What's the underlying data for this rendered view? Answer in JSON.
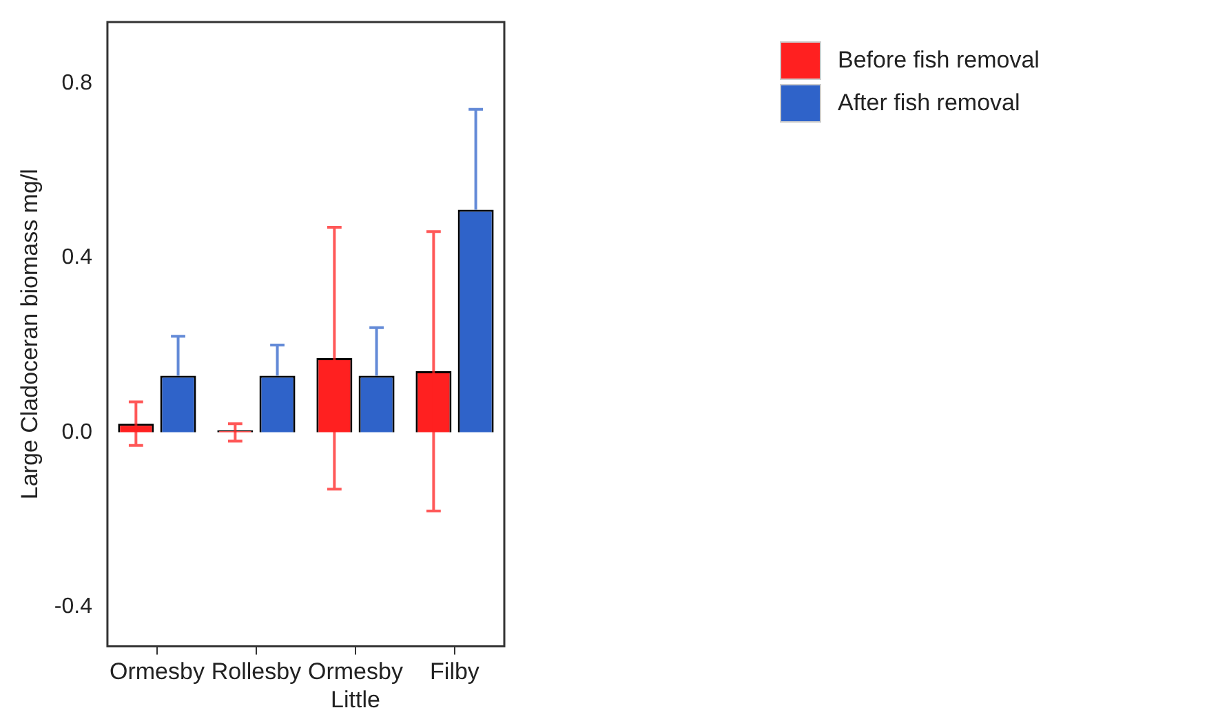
{
  "chart_data": {
    "type": "bar",
    "ylabel": "Large Cladoceran biomass mg/l",
    "categories": [
      "Ormesby",
      "Rollesby",
      "Ormesby Little",
      "Filby"
    ],
    "series": [
      {
        "name": "Before fish removal",
        "color": "#ff2020",
        "values": [
          0.02,
          0.005,
          0.17,
          0.14
        ],
        "errors": [
          [
            -0.03,
            0.07
          ],
          [
            -0.02,
            0.02
          ],
          [
            -0.13,
            0.47
          ],
          [
            -0.18,
            0.46
          ]
        ]
      },
      {
        "name": "After fish removal",
        "color": "#2f63c9",
        "values": [
          0.13,
          0.13,
          0.13,
          0.51
        ],
        "errors": [
          [
            0.13,
            0.22
          ],
          [
            0.13,
            0.2
          ],
          [
            0.13,
            0.24
          ],
          [
            0.51,
            0.74
          ]
        ]
      }
    ],
    "ylim": [
      -0.49,
      0.94
    ],
    "yticks": [
      -0.4,
      {
        "value": 0,
        "label": "0.0"
      },
      0.4,
      0.8
    ],
    "legend": "top right"
  }
}
